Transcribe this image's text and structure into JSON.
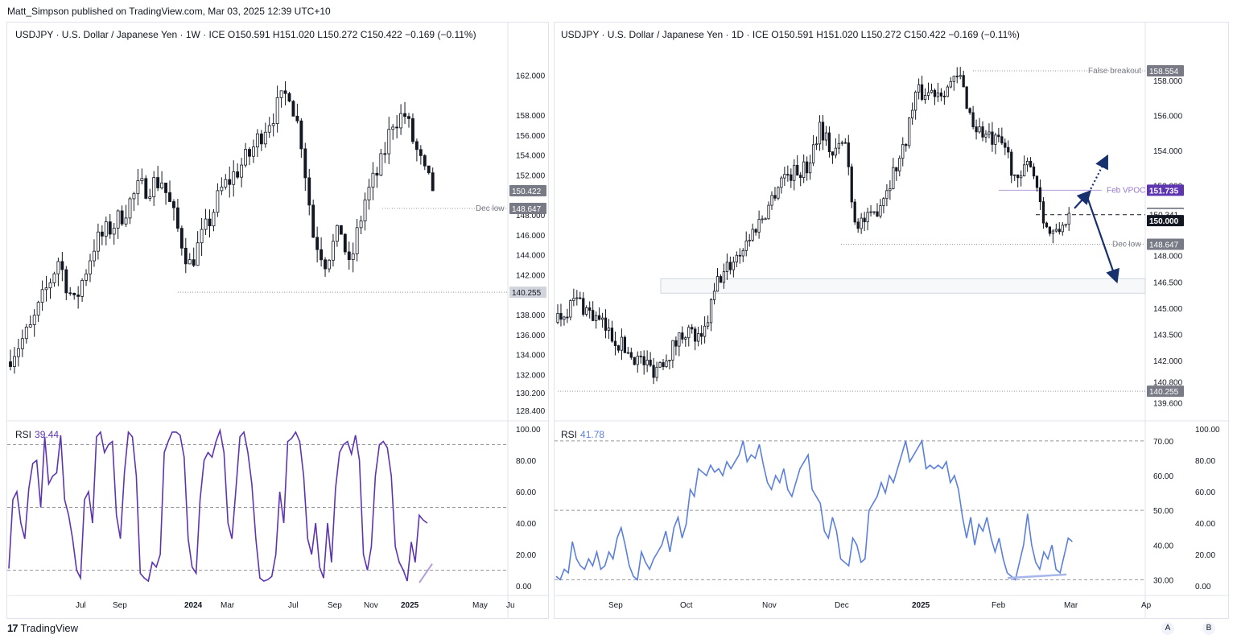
{
  "attribution": "Matt_Simpson published on TradingView.com, Mar 03, 2025 12:39 UTC+10",
  "footer": {
    "brand": "TradingView"
  },
  "left": {
    "legend": "USDJPY · U.S. Dollar / Japanese Yen · 1W · ICE   O150.591   H151.020   L150.272   C150.422   −0.169 (−0.11%)",
    "rsi_label": "RSI",
    "rsi_value": "39.44",
    "dec_low_label": "Dec low",
    "price_labels": [
      {
        "text": "150.422",
        "price": 150.422,
        "style": "gray"
      },
      {
        "text": "148.647",
        "price": 148.647,
        "style": "gray"
      },
      {
        "text": "140.255",
        "price": 140.255,
        "style": "light"
      }
    ]
  },
  "right": {
    "legend": "USDJPY · U.S. Dollar / Japanese Yen · 1D · ICE   O150.591   H151.020   L150.272   C150.422   −0.169 (−0.11%)",
    "rsi_label": "RSI",
    "rsi_value": "41.78",
    "annotations": {
      "false_breakout": "False breakout",
      "feb_vpoc": "Feb VPOC",
      "dec_low": "Dec low"
    },
    "price_labels": [
      {
        "text": "158.554",
        "price": 158.554,
        "style": "gray"
      },
      {
        "text": "151.735",
        "price": 151.735,
        "style": "purple"
      },
      {
        "text": "150.422",
        "price": 150.422,
        "style": "gray"
      },
      {
        "text": "150.341",
        "price": 150.341,
        "style": "plain"
      },
      {
        "text": "150.000",
        "price": 150.0,
        "style": "black"
      },
      {
        "text": "148.647",
        "price": 148.647,
        "style": "gray"
      },
      {
        "text": "140.255",
        "price": 140.255,
        "style": "gray"
      }
    ],
    "buttons": [
      "A",
      "B"
    ]
  },
  "chart_data": [
    {
      "type": "candlestick",
      "title": "USDJPY · U.S. Dollar / Japanese Yen · 1W · ICE",
      "ohlc_last": {
        "open": 150.591,
        "high": 151.02,
        "low": 150.272,
        "close": 150.422,
        "change": "−0.169 (−0.11%)"
      },
      "y_ticks": [
        "162.000",
        "158.000",
        "156.000",
        "154.000",
        "152.000",
        "148.000",
        "146.000",
        "144.000",
        "142.000",
        "138.000",
        "136.000",
        "134.000",
        "132.000",
        "130.200",
        "128.400"
      ],
      "x_ticks": [
        "Jul",
        "Sep",
        "2024",
        "Mar",
        "Jul",
        "Sep",
        "Nov",
        "2025",
        "May",
        "Ju"
      ],
      "ylim": [
        127.6,
        165.5
      ],
      "close_path": [
        {
          "t": 0,
          "c": 134.0
        },
        {
          "t": 5,
          "c": 136.5
        },
        {
          "t": 12,
          "c": 143.5
        },
        {
          "t": 16,
          "c": 139.0
        },
        {
          "t": 21,
          "c": 145.0
        },
        {
          "t": 27,
          "c": 147.5
        },
        {
          "t": 32,
          "c": 150.5
        },
        {
          "t": 38,
          "c": 151.5
        },
        {
          "t": 42,
          "c": 146.5
        },
        {
          "t": 45,
          "c": 143.0
        },
        {
          "t": 49,
          "c": 146.5
        },
        {
          "t": 53,
          "c": 150.5
        },
        {
          "t": 60,
          "c": 154.0
        },
        {
          "t": 64,
          "c": 157.0
        },
        {
          "t": 70,
          "c": 160.5
        },
        {
          "t": 73,
          "c": 155.5
        },
        {
          "t": 76,
          "c": 146.0
        },
        {
          "t": 79,
          "c": 143.5
        },
        {
          "t": 83,
          "c": 146.5
        },
        {
          "t": 85,
          "c": 142.5
        },
        {
          "t": 89,
          "c": 149.5
        },
        {
          "t": 93,
          "c": 153.0
        },
        {
          "t": 96,
          "c": 157.5
        },
        {
          "t": 99,
          "c": 158.0
        },
        {
          "t": 101,
          "c": 155.5
        },
        {
          "t": 104,
          "c": 152.0
        },
        {
          "t": 106,
          "c": 150.42
        }
      ],
      "levels": {
        "dec_low": 148.647,
        "support": 140.255
      },
      "rsi": {
        "label": "RSI",
        "value": 39.44,
        "ylim": [
          0,
          100
        ],
        "ticks": [
          "100.00",
          "80.00",
          "60.00",
          "40.00",
          "20.00",
          "0.00"
        ],
        "bands": [
          90,
          50,
          10
        ],
        "values": [
          11,
          55,
          60,
          40,
          30,
          62,
          78,
          80,
          50,
          95,
          65,
          70,
          72,
          96,
          55,
          45,
          30,
          10,
          5,
          55,
          60,
          40,
          95,
          98,
          85,
          90,
          92,
          45,
          30,
          72,
          98,
          95,
          70,
          8,
          5,
          3,
          15,
          12,
          20,
          85,
          92,
          98,
          98,
          96,
          82,
          30,
          12,
          8,
          55,
          80,
          85,
          82,
          92,
          99,
          85,
          40,
          30,
          62,
          95,
          98,
          85,
          65,
          30,
          5,
          3,
          4,
          6,
          20,
          60,
          40,
          92,
          94,
          98,
          92,
          70,
          30,
          20,
          40,
          12,
          5,
          40,
          15,
          62,
          85,
          90,
          92,
          84,
          96,
          80,
          20,
          10,
          25,
          70,
          90,
          92,
          88,
          70,
          25,
          15,
          10,
          3,
          28,
          15,
          45,
          42,
          40
        ]
      }
    },
    {
      "type": "candlestick",
      "title": "USDJPY · U.S. Dollar / Japanese Yen · 1D · ICE",
      "ohlc_last": {
        "open": 150.591,
        "high": 151.02,
        "low": 150.272,
        "close": 150.422,
        "change": "−0.169 (−0.11%)"
      },
      "y_ticks": [
        "158.000",
        "156.000",
        "154.000",
        "152.000",
        "148.000",
        "146.500",
        "145.000",
        "143.500",
        "142.000",
        "140.800",
        "139.600"
      ],
      "x_ticks": [
        "Sep",
        "Oct",
        "Nov",
        "Dec",
        "2025",
        "Feb",
        "Mar",
        "Ap"
      ],
      "ylim": [
        138.7,
        160.3
      ],
      "close_path": [
        {
          "t": 0,
          "c": 144.5
        },
        {
          "t": 6,
          "c": 145.5
        },
        {
          "t": 14,
          "c": 144.0
        },
        {
          "t": 22,
          "c": 142.5
        },
        {
          "t": 30,
          "c": 141.5
        },
        {
          "t": 35,
          "c": 142.5
        },
        {
          "t": 40,
          "c": 143.8
        },
        {
          "t": 45,
          "c": 143.0
        },
        {
          "t": 50,
          "c": 146.5
        },
        {
          "t": 58,
          "c": 148.5
        },
        {
          "t": 65,
          "c": 150.5
        },
        {
          "t": 70,
          "c": 152.5
        },
        {
          "t": 78,
          "c": 153.0
        },
        {
          "t": 82,
          "c": 155.5
        },
        {
          "t": 86,
          "c": 153.8
        },
        {
          "t": 90,
          "c": 154.5
        },
        {
          "t": 93,
          "c": 150.0
        },
        {
          "t": 98,
          "c": 150.0
        },
        {
          "t": 102,
          "c": 151.5
        },
        {
          "t": 108,
          "c": 154.0
        },
        {
          "t": 112,
          "c": 157.2
        },
        {
          "t": 120,
          "c": 157.5
        },
        {
          "t": 126,
          "c": 158.1
        },
        {
          "t": 130,
          "c": 155.5
        },
        {
          "t": 136,
          "c": 154.5
        },
        {
          "t": 140,
          "c": 154.2
        },
        {
          "t": 144,
          "c": 152.0
        },
        {
          "t": 148,
          "c": 153.5
        },
        {
          "t": 150,
          "c": 152.0
        },
        {
          "t": 153,
          "c": 149.5
        },
        {
          "t": 156,
          "c": 149.1
        },
        {
          "t": 158,
          "c": 149.8
        },
        {
          "t": 160,
          "c": 150.42
        }
      ],
      "levels": {
        "false_breakout": 158.554,
        "feb_vpoc": 151.735,
        "dec_low": 148.647,
        "support": 140.255,
        "dashed_level": 150.341
      },
      "zone": [
        146.1,
        146.5
      ],
      "scenario_arrows": [
        {
          "from": 150.7,
          "to": 151.6,
          "style": "solid"
        },
        {
          "from": 151.6,
          "to": 153.6,
          "style": "dotted"
        },
        {
          "from": 151.6,
          "to": 146.6,
          "style": "solid"
        }
      ],
      "rsi": {
        "label": "RSI",
        "value": 41.78,
        "ylim_left": [
          28,
          73
        ],
        "ylim_right": [
          0,
          100
        ],
        "ticks_left": [
          "70.00",
          "60.00",
          "50.00",
          "40.00",
          "30.00"
        ],
        "ticks_right": [
          "100.00",
          "80.00",
          "60.00",
          "40.00",
          "20.00",
          "0.00"
        ],
        "bands": [
          70,
          50,
          30
        ],
        "values": [
          31,
          30,
          33,
          32,
          41,
          36,
          34,
          33,
          36,
          34,
          38,
          33,
          34,
          38,
          36,
          42,
          45,
          40,
          34,
          31,
          30,
          38,
          35,
          33,
          36,
          38,
          40,
          44,
          38,
          45,
          48,
          42,
          46,
          56,
          54,
          62,
          61,
          60,
          63,
          61,
          62,
          60,
          64,
          62,
          64,
          66,
          70,
          64,
          66,
          65,
          69,
          63,
          58,
          56,
          60,
          58,
          62,
          56,
          54,
          58,
          62,
          64,
          66,
          56,
          54,
          52,
          44,
          42,
          48,
          44,
          36,
          35,
          34,
          42,
          40,
          35,
          36,
          50,
          52,
          54,
          58,
          55,
          60,
          58,
          62,
          66,
          70,
          64,
          66,
          68,
          70,
          62,
          63,
          62,
          63,
          62,
          64,
          58,
          60,
          56,
          48,
          42,
          48,
          40,
          46,
          44,
          48,
          42,
          38,
          42,
          36,
          32,
          31,
          30,
          35,
          40,
          49,
          40,
          35,
          33,
          38,
          36,
          40,
          33,
          32,
          37,
          42,
          41
        ]
      }
    }
  ],
  "colors": {
    "up": "#131722",
    "down": "#131722",
    "rsi_left": "#5e35b1",
    "rsi_right": "#5b7fdc",
    "arrow": "#17306e",
    "vpoc": "#7e57c2"
  }
}
